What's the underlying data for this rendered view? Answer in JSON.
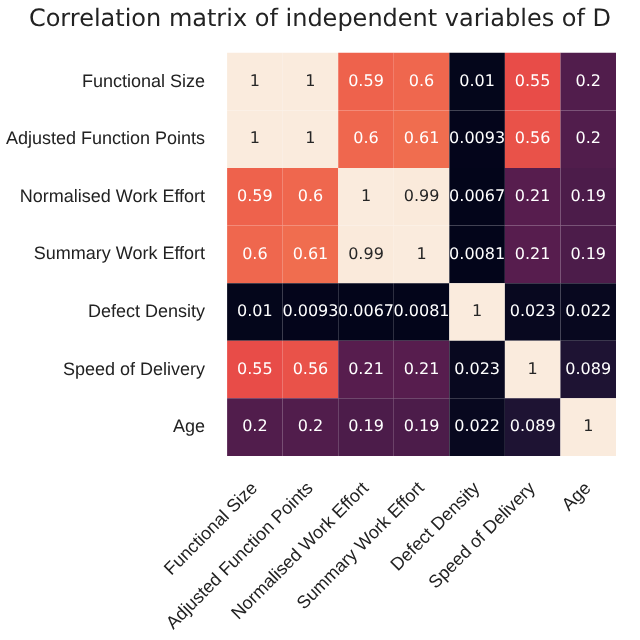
{
  "chart_data": {
    "type": "heatmap",
    "data_labels": true,
    "title": "Correlation matrix of independent variables of D",
    "categories": [
      "Functional Size",
      "Adjusted Function Points",
      "Normalised Work Effort",
      "Summary Work Effort",
      "Defect Density",
      "Speed of Delivery",
      "Age"
    ],
    "y_categories": [
      "Functional Size",
      "Adjusted Function Points",
      "Normalised Work Effort",
      "Summary Work Effort",
      "Defect Density",
      "Speed of Delivery",
      "Age"
    ],
    "cells": [
      [
        1,
        1,
        0.59,
        0.6,
        0.01,
        0.55,
        0.2
      ],
      [
        1,
        1,
        0.6,
        0.61,
        0.0093,
        0.56,
        0.2
      ],
      [
        0.59,
        0.6,
        1,
        0.99,
        0.0067,
        0.21,
        0.19
      ],
      [
        0.6,
        0.61,
        0.99,
        1,
        0.0081,
        0.21,
        0.19
      ],
      [
        0.01,
        0.0093,
        0.0067,
        0.0081,
        1,
        0.023,
        0.022
      ],
      [
        0.55,
        0.56,
        0.21,
        0.21,
        0.023,
        1,
        0.089
      ],
      [
        0.2,
        0.2,
        0.19,
        0.19,
        0.022,
        0.089,
        1
      ]
    ]
  }
}
